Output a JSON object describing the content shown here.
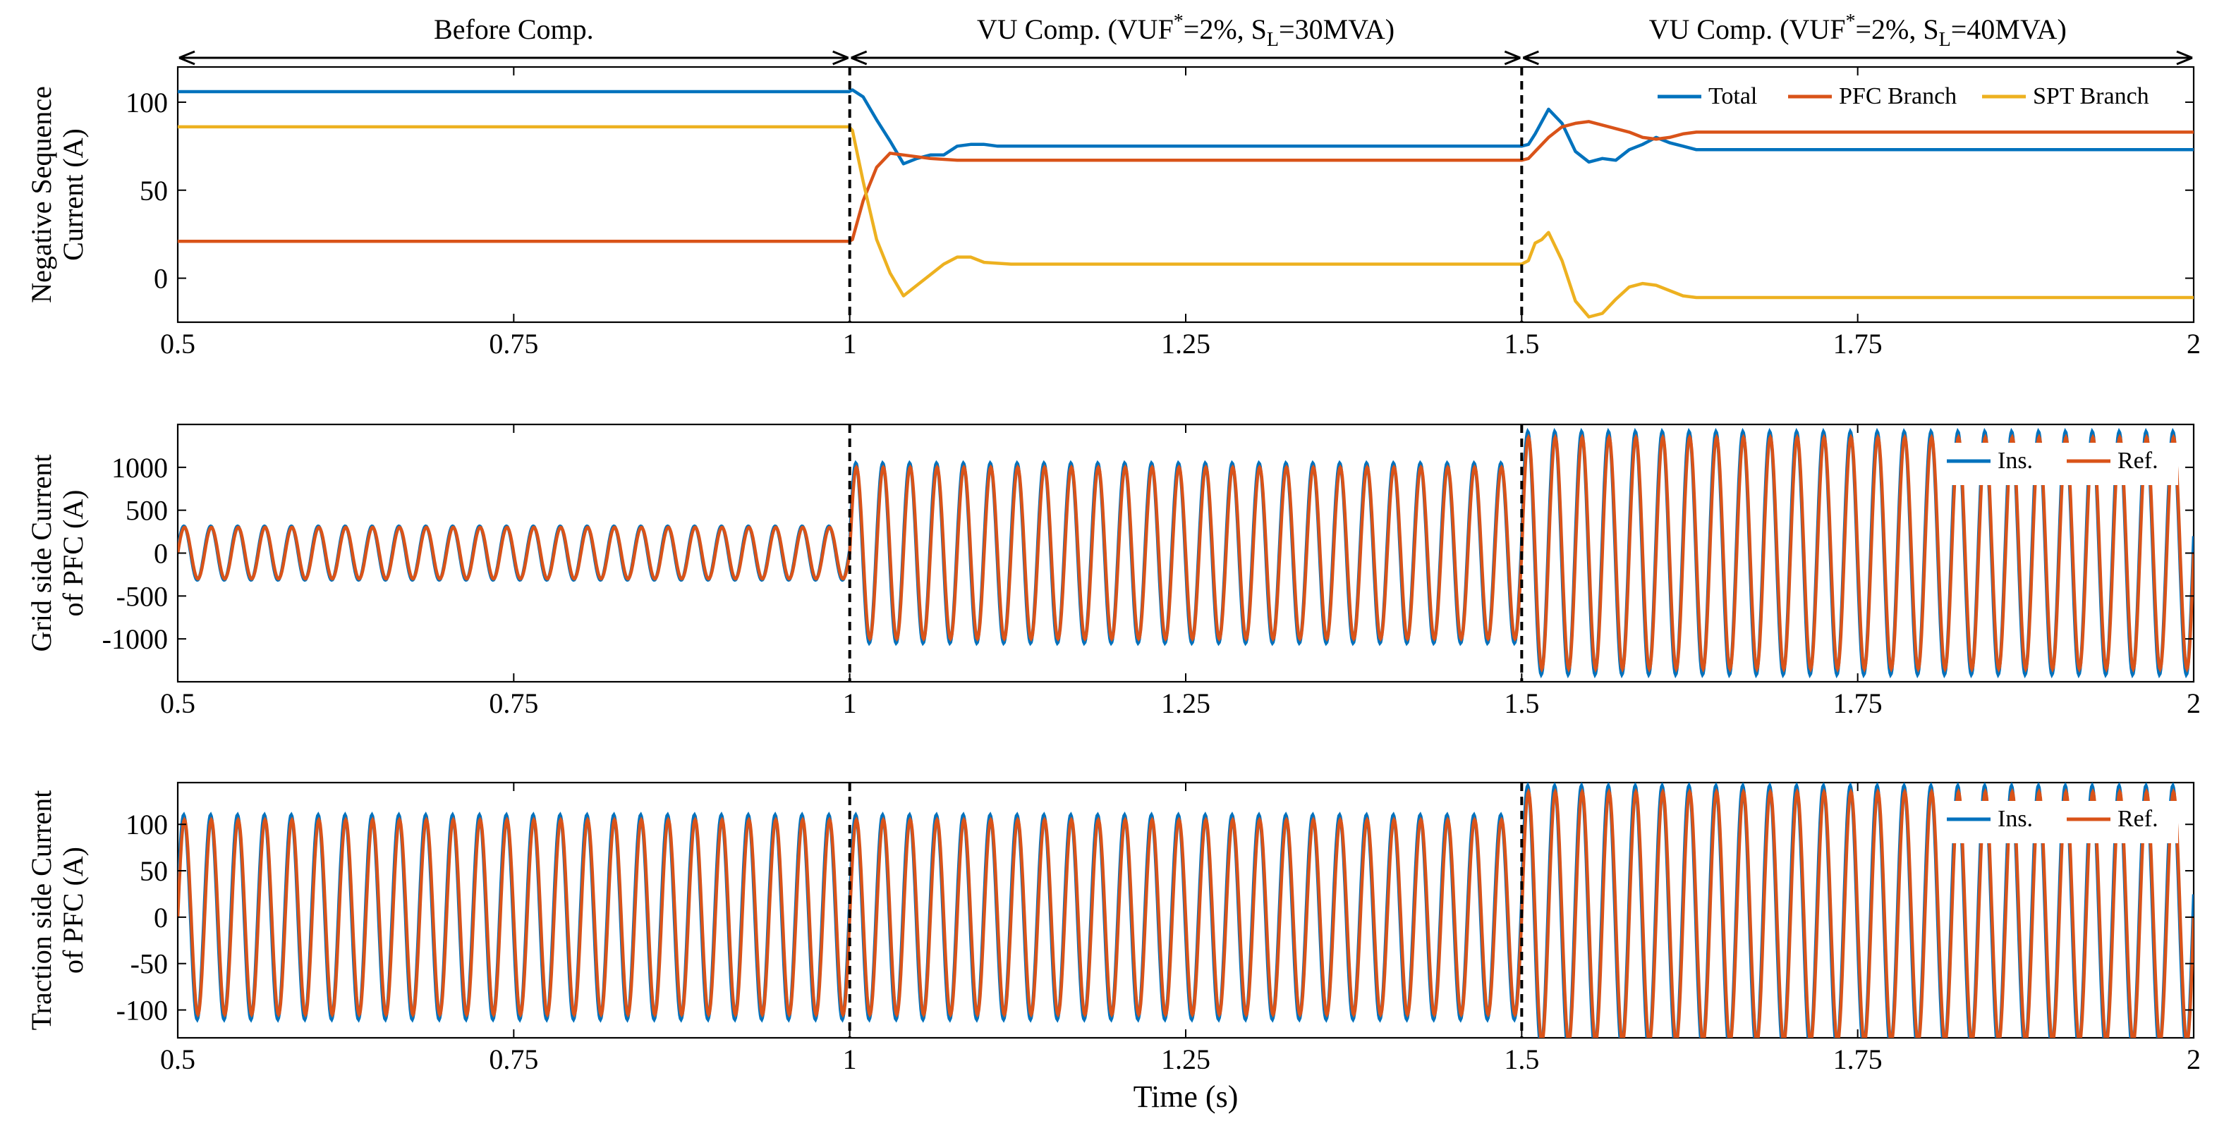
{
  "chart_data": {
    "type": "line",
    "figure_xlabel": "Time (s)",
    "colors": {
      "blue": "#0072BD",
      "orange": "#D95319",
      "yellow": "#EDB120",
      "axis": "#000000",
      "marker": "#000000"
    },
    "phase_markers": [
      1,
      1.5
    ],
    "phases": [
      {
        "id": "before",
        "x": [
          0.5,
          1
        ],
        "label": "Before Comp.",
        "sup": "",
        "rest": "",
        "subscript": "",
        "suffix": ""
      },
      {
        "id": "sl30",
        "x": [
          1,
          1.5
        ],
        "label": "VU Comp. (VUF",
        "sup": "*",
        "rest": "=2%, S",
        "subscript": "L",
        "suffix": "=30MVA)"
      },
      {
        "id": "sl40",
        "x": [
          1.5,
          2
        ],
        "label": "VU Comp. (VUF",
        "sup": "*",
        "rest": "=2%, S",
        "subscript": "L",
        "suffix": "=40MVA)"
      }
    ],
    "panels": [
      {
        "id": "negseq",
        "ylabel_lines": [
          "Negative Sequence",
          "Current (A)"
        ],
        "xlim": [
          0.5,
          2
        ],
        "ylim": [
          -25,
          120
        ],
        "yticks": [
          0,
          50,
          100
        ],
        "xticks": [
          0.5,
          0.75,
          1,
          1.25,
          1.5,
          1.75,
          2
        ],
        "xtick_labels": [
          "0.5",
          "0.75",
          "1",
          "1.25",
          "1.5",
          "1.75",
          "2"
        ],
        "legend": {
          "entries": [
            "Total",
            "PFC Branch",
            "SPT Branch"
          ],
          "placement": "top-right",
          "layout": "horizontal"
        },
        "series": [
          {
            "name": "Total",
            "color_key": "blue",
            "x": [
              0.5,
              0.9995,
              1.002,
              1.01,
              1.02,
              1.03,
              1.04,
              1.05,
              1.06,
              1.07,
              1.08,
              1.09,
              1.1,
              1.11,
              1.5,
              1.505,
              1.51,
              1.52,
              1.53,
              1.54,
              1.55,
              1.56,
              1.57,
              1.58,
              1.59,
              1.6,
              1.61,
              1.62,
              1.63,
              2.0
            ],
            "y": [
              106,
              106,
              107,
              103,
              90,
              78,
              65,
              68,
              70,
              70,
              75,
              76,
              76,
              75,
              75,
              76,
              82,
              96,
              88,
              72,
              66,
              68,
              67,
              73,
              76,
              80,
              77,
              75,
              73,
              73
            ]
          },
          {
            "name": "PFC Branch",
            "color_key": "orange",
            "x": [
              0.5,
              0.9995,
              1.002,
              1.01,
              1.02,
              1.03,
              1.04,
              1.06,
              1.08,
              1.1,
              1.5,
              1.505,
              1.51,
              1.52,
              1.53,
              1.54,
              1.55,
              1.56,
              1.57,
              1.58,
              1.59,
              1.6,
              1.61,
              1.62,
              1.63,
              2.0
            ],
            "y": [
              21,
              21,
              22,
              44,
              63,
              71,
              70,
              68,
              67,
              67,
              67,
              68,
              72,
              80,
              86,
              88,
              89,
              87,
              85,
              83,
              80,
              79,
              80,
              82,
              83,
              83
            ]
          },
          {
            "name": "SPT Branch",
            "color_key": "yellow",
            "x": [
              0.5,
              0.9995,
              1.002,
              1.01,
              1.02,
              1.03,
              1.04,
              1.05,
              1.06,
              1.07,
              1.08,
              1.09,
              1.1,
              1.12,
              1.5,
              1.505,
              1.51,
              1.515,
              1.52,
              1.53,
              1.54,
              1.55,
              1.56,
              1.57,
              1.58,
              1.59,
              1.6,
              1.61,
              1.62,
              1.63,
              2.0
            ],
            "y": [
              86,
              86,
              84,
              55,
              22,
              3,
              -10,
              -4,
              2,
              8,
              12,
              12,
              9,
              8,
              8,
              10,
              20,
              22,
              26,
              10,
              -13,
              -22,
              -20,
              -12,
              -5,
              -3,
              -4,
              -7,
              -10,
              -11,
              -11
            ]
          }
        ]
      },
      {
        "id": "grid",
        "ylabel_lines": [
          "Grid side Current",
          "of PFC (A)"
        ],
        "xlim": [
          0.5,
          2
        ],
        "ylim": [
          -1500,
          1500
        ],
        "yticks": [
          -1000,
          -500,
          0,
          500,
          1000
        ],
        "xticks": [
          0.5,
          0.75,
          1,
          1.25,
          1.5,
          1.75,
          2
        ],
        "xtick_labels": [
          "0.5",
          "0.75",
          "1",
          "1.25",
          "1.5",
          "1.75",
          "2"
        ],
        "legend": {
          "entries": [
            "Ins.",
            "Ref."
          ],
          "placement": "top-right",
          "layout": "horizontal"
        },
        "oscillation": {
          "frequency_hz": 50,
          "amplitude_segments": [
            {
              "x": [
                0.5,
                1
              ],
              "amplitude": 300
            },
            {
              "x": [
                1,
                1.5
              ],
              "amplitude": 1000
            },
            {
              "x": [
                1.5,
                2
              ],
              "amplitude": 1350
            }
          ],
          "series": [
            {
              "name": "Ins.",
              "color_key": "blue",
              "phase_deg": 8,
              "amplitude_scale": 1.05
            },
            {
              "name": "Ref.",
              "color_key": "orange",
              "phase_deg": 0,
              "amplitude_scale": 1.0
            }
          ]
        }
      },
      {
        "id": "traction",
        "ylabel_lines": [
          "Traction side Current",
          "of PFC (A)"
        ],
        "xlim": [
          0.5,
          2
        ],
        "ylim": [
          -130,
          145
        ],
        "yticks": [
          -100,
          -50,
          0,
          50,
          100
        ],
        "xticks": [
          0.5,
          0.75,
          1,
          1.25,
          1.5,
          1.75,
          2
        ],
        "xtick_labels": [
          "0.5",
          "0.75",
          "1",
          "1.25",
          "1.5",
          "1.75",
          "2"
        ],
        "legend": {
          "entries": [
            "Ins.",
            "Ref."
          ],
          "placement": "top-right",
          "layout": "horizontal"
        },
        "oscillation": {
          "frequency_hz": 50,
          "amplitude_segments": [
            {
              "x": [
                0.5,
                1
              ],
              "amplitude": 105
            },
            {
              "x": [
                1,
                1.5
              ],
              "amplitude": 105
            },
            {
              "x": [
                1.5,
                2
              ],
              "amplitude": 135
            }
          ],
          "series": [
            {
              "name": "Ins.",
              "color_key": "blue",
              "phase_deg": 10,
              "amplitude_scale": 1.05
            },
            {
              "name": "Ref.",
              "color_key": "orange",
              "phase_deg": 0,
              "amplitude_scale": 1.0
            }
          ]
        }
      }
    ]
  }
}
